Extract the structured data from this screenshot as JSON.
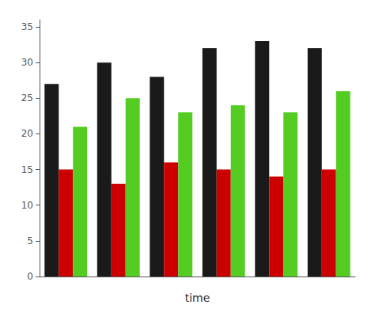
{
  "chart_data": {
    "type": "bar",
    "xlabel": "time",
    "categories": [
      null,
      null,
      null,
      null,
      null,
      null
    ],
    "series": [
      {
        "color": "#1a1a1a",
        "values": [
          27,
          30,
          28,
          32,
          33,
          32
        ]
      },
      {
        "color": "#cc0000",
        "values": [
          15,
          13,
          16,
          15,
          14,
          15
        ]
      },
      {
        "color": "#55cc22",
        "values": [
          21,
          25,
          23,
          24,
          23,
          26
        ]
      }
    ],
    "ylim": [
      0,
      36
    ],
    "yticks": [
      0,
      5,
      10,
      15,
      20,
      25,
      30,
      35
    ],
    "grid": false,
    "tick_labels": "y"
  }
}
